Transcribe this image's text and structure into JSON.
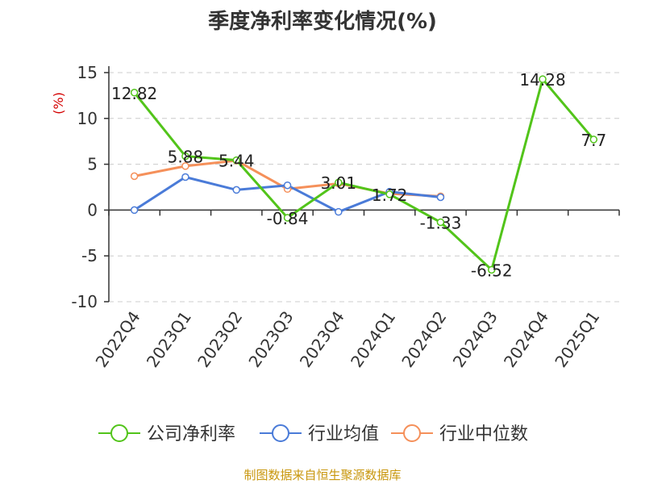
{
  "title": "季度净利率变化情况(%)",
  "source": "制图数据来自恒生聚源数据库",
  "chart_data": {
    "type": "line",
    "title": "季度净利率变化情况(%)",
    "ylabel": "(%)",
    "ylim": [
      -10,
      15
    ],
    "yticks": [
      "15",
      "10",
      "5",
      "0",
      "-5",
      "-10"
    ],
    "categories": [
      "2022Q4",
      "2023Q1",
      "2023Q2",
      "2023Q3",
      "2023Q4",
      "2024Q1",
      "2024Q2",
      "2024Q3",
      "2024Q4",
      "2025Q1"
    ],
    "grid": true,
    "legend_position": "bottom",
    "series": [
      {
        "name": "公司净利率",
        "color": "#52c41a",
        "values": [
          12.82,
          5.88,
          5.44,
          -0.84,
          3.01,
          1.72,
          -1.33,
          -6.52,
          14.28,
          7.7
        ],
        "labels": [
          "12.82",
          "5.88",
          "5.44",
          "-0.84",
          "3.01",
          "1.72",
          "-1.33",
          "-6.52",
          "14.28",
          "7.7"
        ]
      },
      {
        "name": "行业均值",
        "color": "#4a7bd8",
        "values": [
          0.0,
          3.6,
          2.2,
          2.7,
          -0.2,
          2.0,
          1.4,
          null,
          null,
          null
        ]
      },
      {
        "name": "行业中位数",
        "color": "#f5905a",
        "values": [
          3.7,
          4.8,
          5.4,
          2.3,
          2.9,
          1.8,
          1.5,
          null,
          null,
          null
        ]
      }
    ]
  }
}
